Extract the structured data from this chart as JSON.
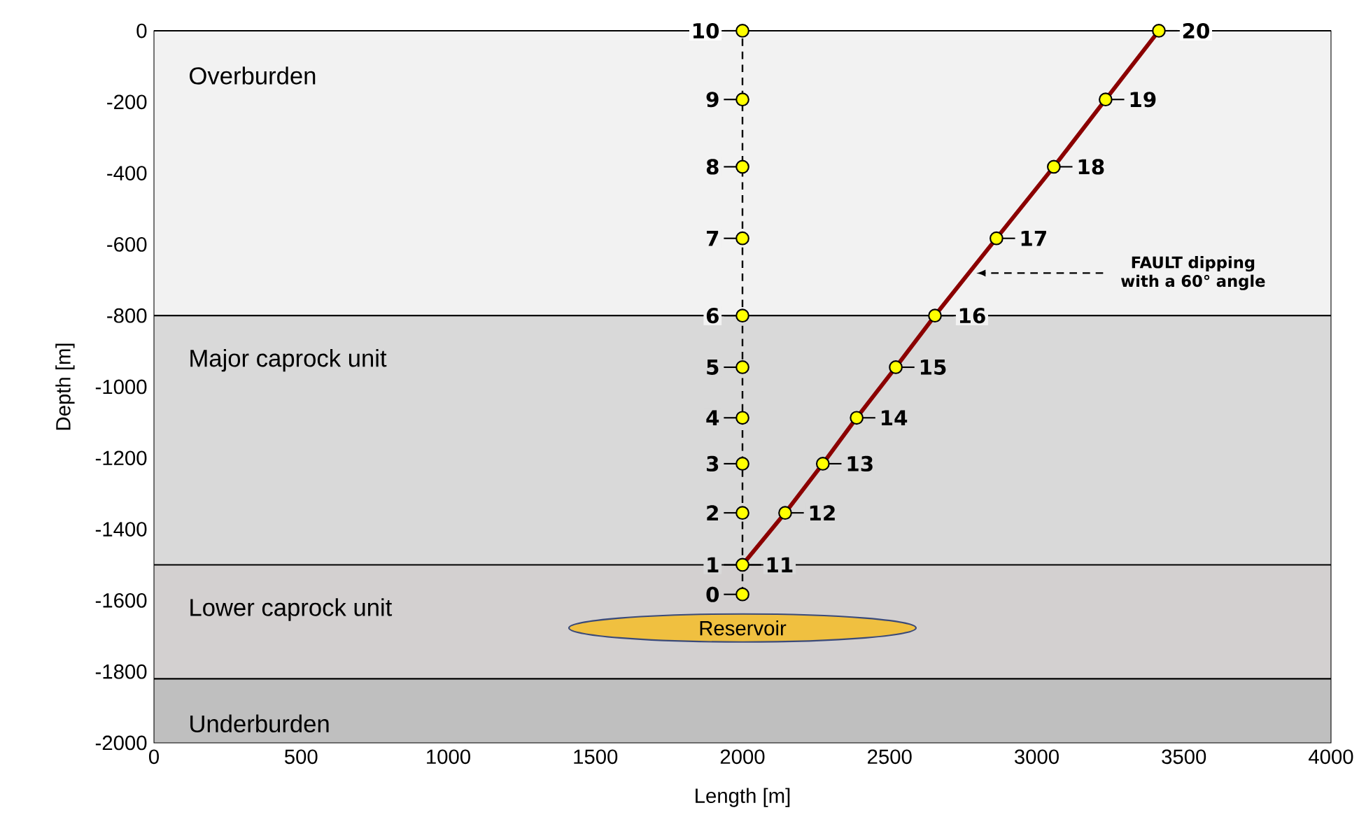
{
  "chart_data": {
    "type": "scatter",
    "xlabel": "Length [m]",
    "ylabel": "Depth [m]",
    "xlim": [
      0,
      4000
    ],
    "ylim": [
      -2000,
      0
    ],
    "xticks": [
      0,
      500,
      1000,
      1500,
      2000,
      2500,
      3000,
      3500,
      4000
    ],
    "yticks": [
      -2000,
      -1800,
      -1600,
      -1400,
      -1200,
      -1000,
      -800,
      -600,
      -400,
      -200,
      0
    ],
    "bands": [
      {
        "axis": "y",
        "from": -800,
        "to": 0,
        "label": "Overburden",
        "color": "#f2f2f2"
      },
      {
        "axis": "y",
        "from": -1500,
        "to": -800,
        "label": "Major caprock unit",
        "color": "#d9d9d9"
      },
      {
        "axis": "y",
        "from": -1820,
        "to": -1500,
        "label": "Lower caprock unit",
        "color": "#d3d0d0"
      },
      {
        "axis": "y",
        "from": -2000,
        "to": -1820,
        "label": "Underburden",
        "color": "#bfbfbf"
      }
    ],
    "series": [
      {
        "type": "line",
        "color": "#000000",
        "line_style": "dashed",
        "x": [
          2000,
          2000,
          2000,
          2000,
          2000,
          2000,
          2000,
          2000,
          2000,
          2000,
          2000
        ],
        "values": [
          -1583,
          -1500,
          -1354,
          -1216,
          -1087,
          -945,
          -800,
          -583,
          -382,
          -193,
          0
        ]
      },
      {
        "type": "line",
        "color": "#8b0000",
        "line_style": "solid",
        "x": [
          2000,
          2145,
          2273,
          2388,
          2521,
          2654,
          2863,
          3058,
          3234,
          3415
        ],
        "values": [
          -1500,
          -1354,
          -1216,
          -1087,
          -945,
          -800,
          -583,
          -382,
          -193,
          0
        ]
      },
      {
        "type": "scatter",
        "color": "#ffff00",
        "marker": "circle",
        "x": [
          2000,
          2000,
          2000,
          2000,
          2000,
          2000,
          2000,
          2000,
          2000,
          2000,
          2000,
          2145,
          2273,
          2388,
          2521,
          2654,
          2863,
          3058,
          3234,
          3415
        ],
        "values": [
          -1583,
          -1500,
          -1354,
          -1216,
          -1087,
          -945,
          -800,
          -583,
          -382,
          -193,
          0,
          -1354,
          -1216,
          -1087,
          -945,
          -800,
          -583,
          -382,
          -193,
          0
        ]
      }
    ],
    "annotations": [
      {
        "text": "0",
        "x": 2000,
        "y": -1583
      },
      {
        "text": "1",
        "x": 2000,
        "y": -1500
      },
      {
        "text": "2",
        "x": 2000,
        "y": -1354
      },
      {
        "text": "3",
        "x": 2000,
        "y": -1216
      },
      {
        "text": "4",
        "x": 2000,
        "y": -1087
      },
      {
        "text": "5",
        "x": 2000,
        "y": -945
      },
      {
        "text": "6",
        "x": 2000,
        "y": -800
      },
      {
        "text": "7",
        "x": 2000,
        "y": -583
      },
      {
        "text": "8",
        "x": 2000,
        "y": -382
      },
      {
        "text": "9",
        "x": 2000,
        "y": -193
      },
      {
        "text": "10",
        "x": 2000,
        "y": 0
      },
      {
        "text": "11",
        "x": 2000,
        "y": -1500
      },
      {
        "text": "12",
        "x": 2145,
        "y": -1354
      },
      {
        "text": "13",
        "x": 2273,
        "y": -1216
      },
      {
        "text": "14",
        "x": 2388,
        "y": -1087
      },
      {
        "text": "15",
        "x": 2521,
        "y": -945
      },
      {
        "text": "16",
        "x": 2654,
        "y": -800
      },
      {
        "text": "17",
        "x": 2863,
        "y": -583
      },
      {
        "text": "18",
        "x": 3058,
        "y": -382
      },
      {
        "text": "19",
        "x": 3234,
        "y": -193
      },
      {
        "text": "20",
        "x": 3415,
        "y": 0
      },
      "Reservoir",
      "FAULT dipping with a 60° angle"
    ]
  }
}
